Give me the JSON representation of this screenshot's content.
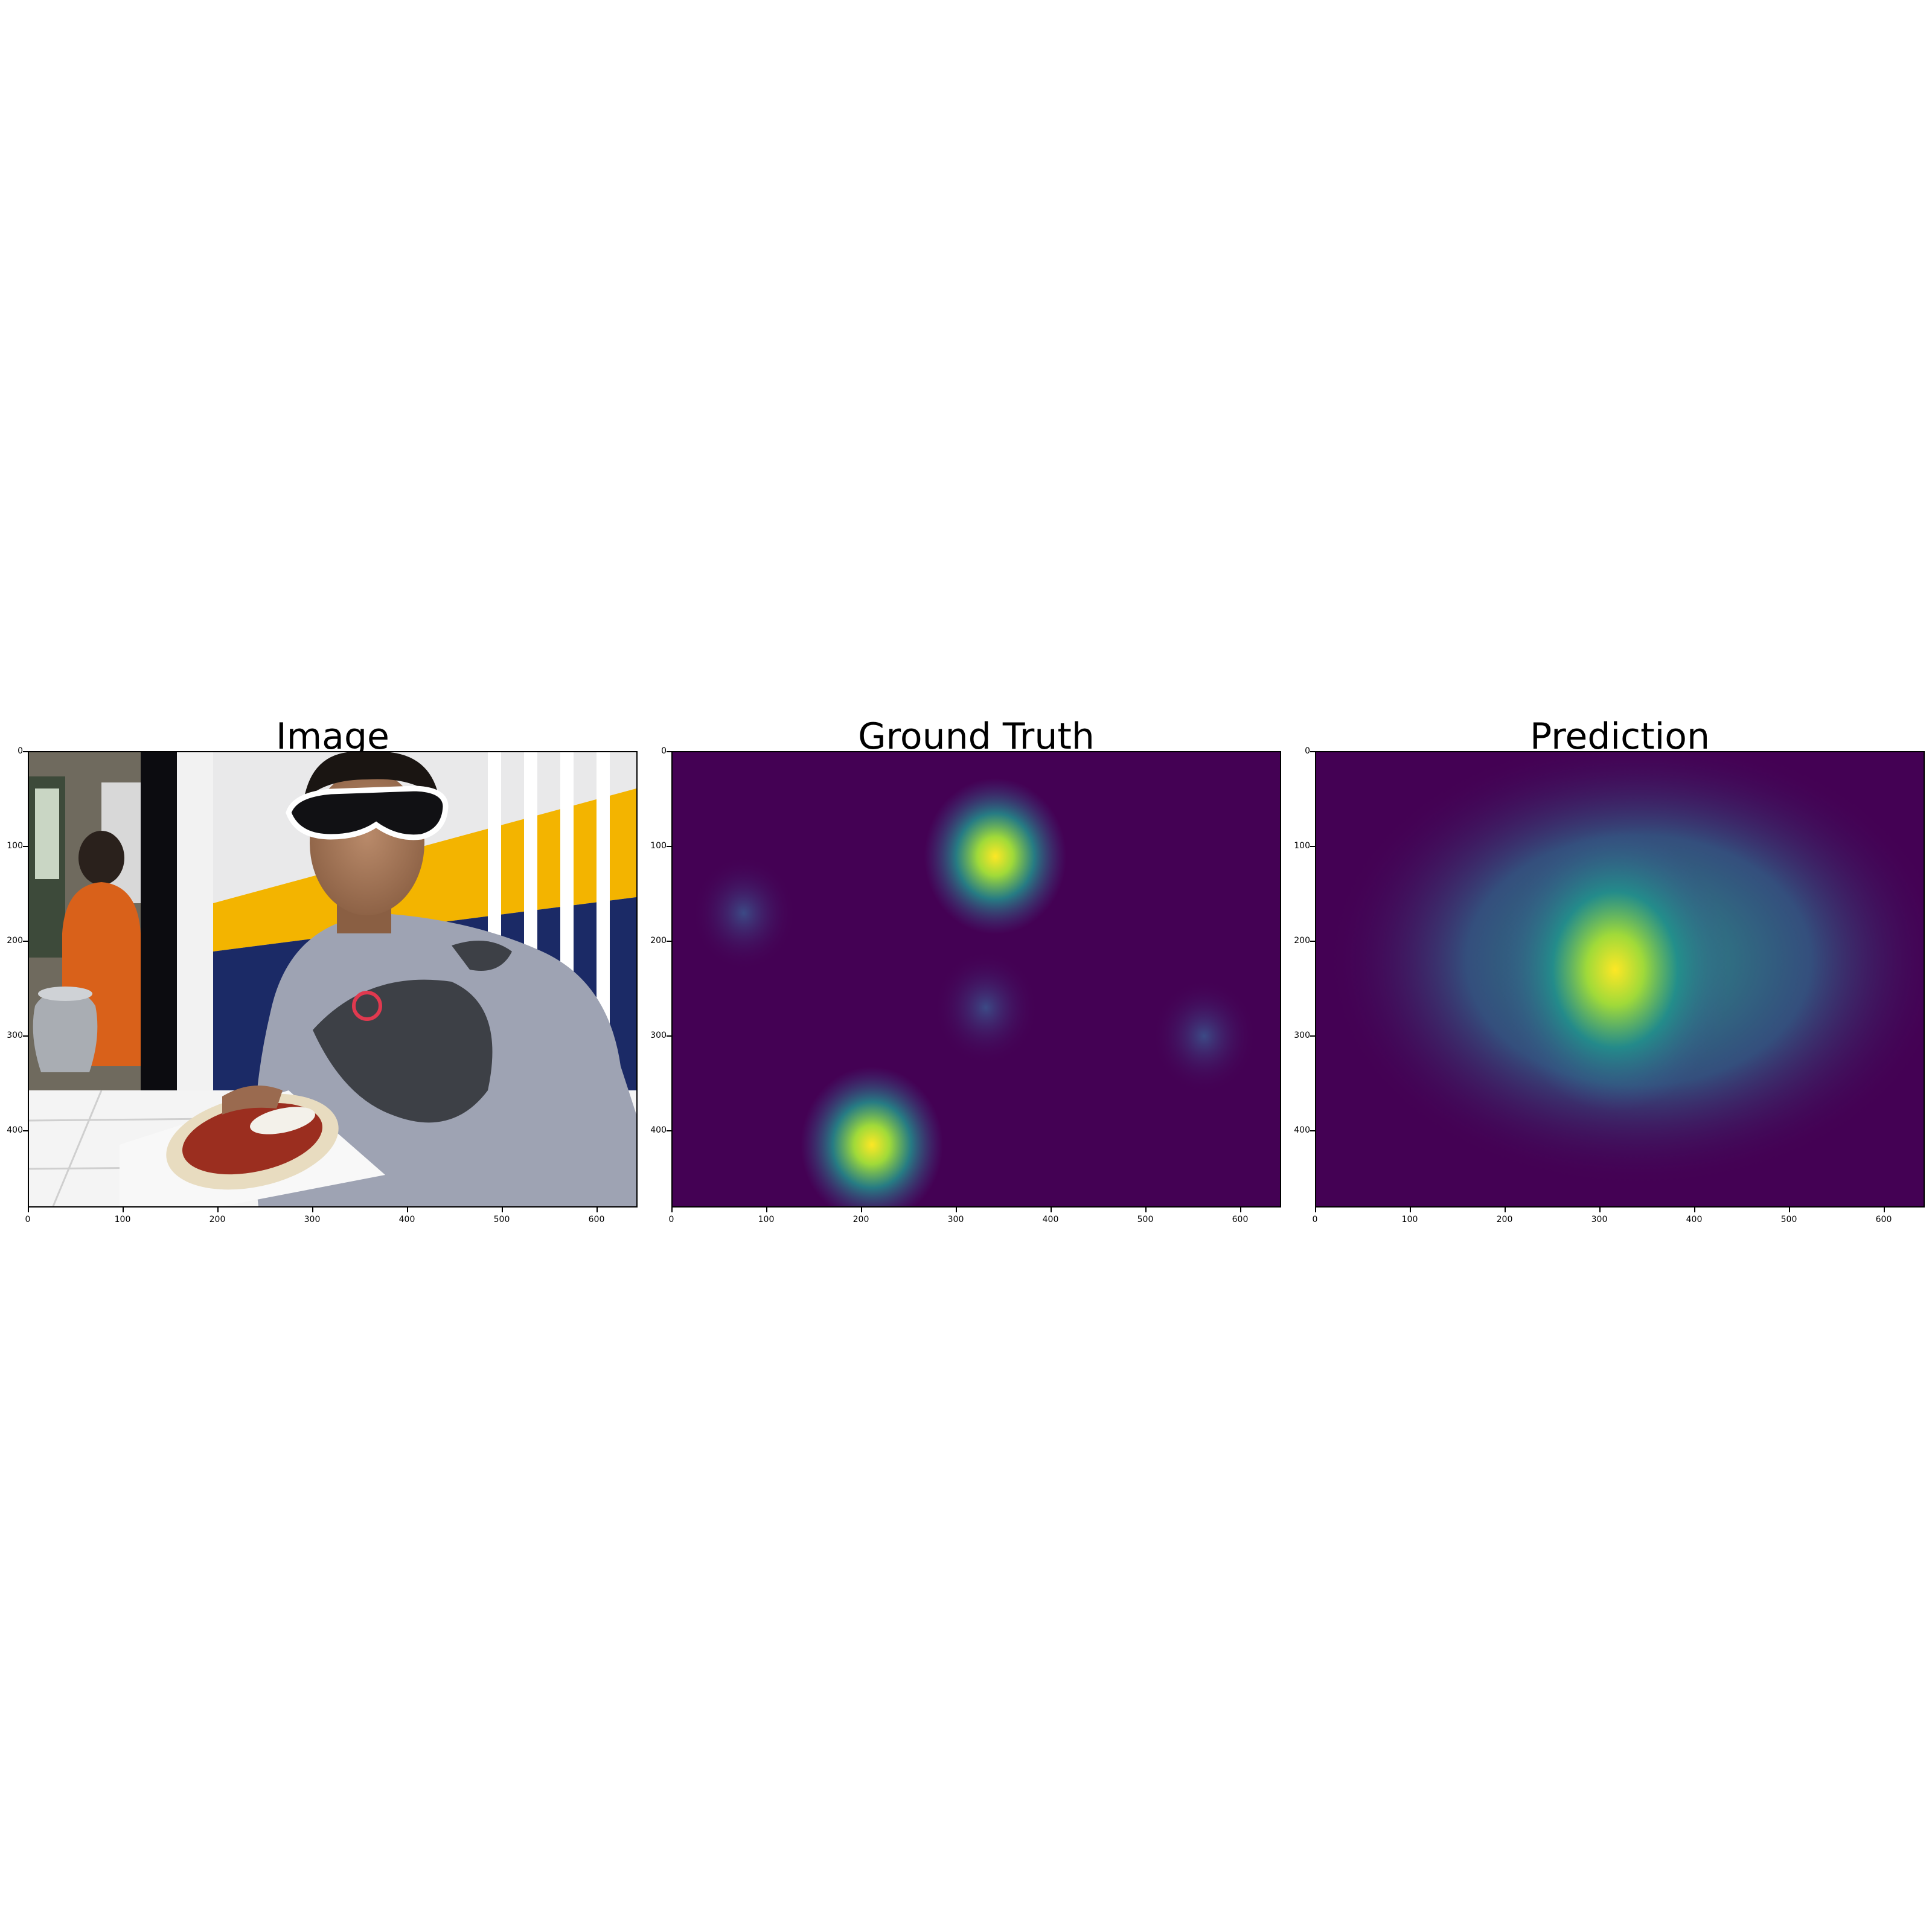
{
  "figure": {
    "panels": [
      {
        "id": "image",
        "title": "Image"
      },
      {
        "id": "ground_truth",
        "title": "Ground Truth"
      },
      {
        "id": "prediction",
        "title": "Prediction"
      }
    ]
  },
  "chart_data": [
    {
      "type": "image",
      "title": "Image",
      "xlim": [
        0,
        640
      ],
      "ylim": [
        480,
        0
      ],
      "xticks": [
        "0",
        "100",
        "200",
        "300",
        "400",
        "500",
        "600"
      ],
      "yticks": [
        "0",
        "100",
        "200",
        "300",
        "400"
      ]
    },
    {
      "type": "heatmap",
      "title": "Ground Truth",
      "colormap": "viridis",
      "xlim": [
        0,
        640
      ],
      "ylim": [
        480,
        0
      ],
      "xticks": [
        "0",
        "100",
        "200",
        "300",
        "400",
        "500",
        "600"
      ],
      "yticks": [
        "0",
        "100",
        "200",
        "300",
        "400"
      ],
      "hotspots": [
        {
          "x": 340,
          "y": 110,
          "intensity": 1.0
        },
        {
          "x": 210,
          "y": 415,
          "intensity": 0.95
        },
        {
          "x": 75,
          "y": 170,
          "intensity": 0.3
        },
        {
          "x": 330,
          "y": 270,
          "intensity": 0.3
        },
        {
          "x": 560,
          "y": 300,
          "intensity": 0.2
        }
      ]
    },
    {
      "type": "heatmap",
      "title": "Prediction",
      "colormap": "viridis",
      "xlim": [
        0,
        640
      ],
      "ylim": [
        480,
        0
      ],
      "xticks": [
        "0",
        "100",
        "200",
        "300",
        "400",
        "500",
        "600"
      ],
      "yticks": [
        "0",
        "100",
        "200",
        "300",
        "400"
      ],
      "hotspots": [
        {
          "x": 315,
          "y": 230,
          "intensity": 1.0
        }
      ]
    }
  ],
  "colors": {
    "viridis_low": "#440154",
    "viridis_mid": "#21918c",
    "viridis_high": "#fde725",
    "photo_wall_white": "#e9e9ea",
    "photo_stripe_yellow": "#f3b400",
    "photo_stripe_blue": "#1b2a66",
    "photo_hoodie": "#9ea3b3"
  }
}
